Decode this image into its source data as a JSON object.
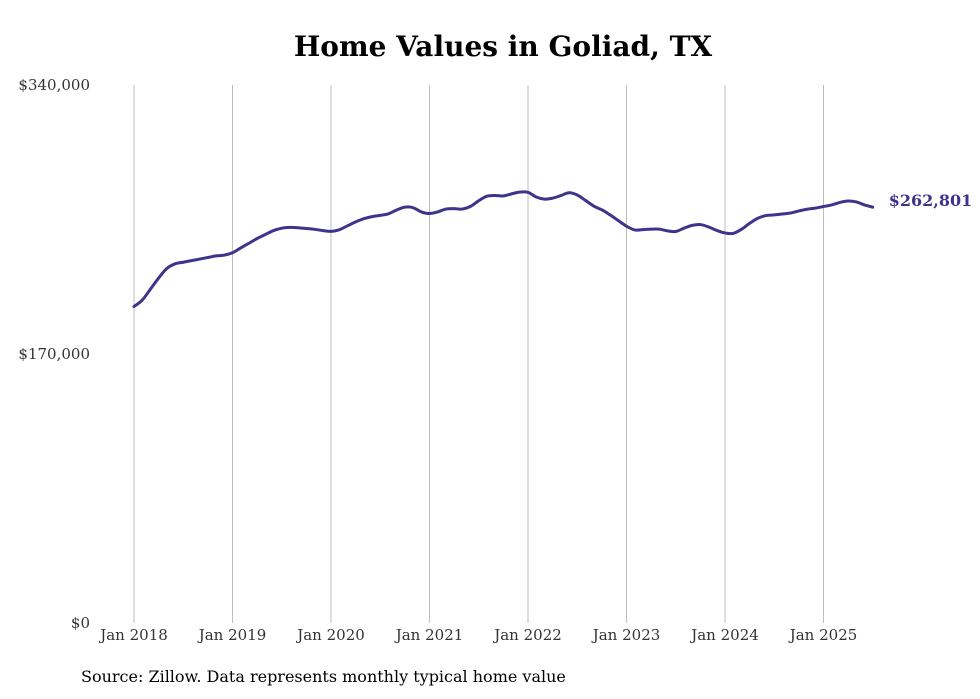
{
  "chart_data": {
    "type": "line",
    "title": "Home Values in Goliad, TX",
    "xlabel": "",
    "ylabel": "",
    "ylim": [
      0,
      340000
    ],
    "y_ticks": [
      "$340,000",
      "$170,000",
      "$0"
    ],
    "y_tick_values": [
      340000,
      170000,
      0
    ],
    "x_ticks": [
      "Jan 2018",
      "Jan 2019",
      "Jan 2020",
      "Jan 2021",
      "Jan 2022",
      "Jan 2023",
      "Jan 2024",
      "Jan 2025"
    ],
    "x_tick_values": [
      2018,
      2019,
      2020,
      2021,
      2022,
      2023,
      2024,
      2025
    ],
    "xlim": [
      2018,
      2025.5
    ],
    "grid": "vertical",
    "line_color": "#3d348b",
    "end_label": "$262,801",
    "series": [
      {
        "x": [
          2018.0,
          2018.083,
          2018.167,
          2018.25,
          2018.333,
          2018.417,
          2018.5,
          2018.583,
          2018.667,
          2018.75,
          2018.833,
          2018.917,
          2019.0,
          2019.083,
          2019.167,
          2019.25,
          2019.333,
          2019.417,
          2019.5,
          2019.583,
          2019.667,
          2019.75,
          2019.833,
          2019.917,
          2020.0,
          2020.083,
          2020.167,
          2020.25,
          2020.333,
          2020.417,
          2020.5,
          2020.583,
          2020.667,
          2020.75,
          2020.833,
          2020.917,
          2021.0,
          2021.083,
          2021.167,
          2021.25,
          2021.333,
          2021.417,
          2021.5,
          2021.583,
          2021.667,
          2021.75,
          2021.833,
          2021.917,
          2022.0,
          2022.083,
          2022.167,
          2022.25,
          2022.333,
          2022.417,
          2022.5,
          2022.583,
          2022.667,
          2022.75,
          2022.833,
          2022.917,
          2023.0,
          2023.083,
          2023.167,
          2023.25,
          2023.333,
          2023.417,
          2023.5,
          2023.583,
          2023.667,
          2023.75,
          2023.833,
          2023.917,
          2024.0,
          2024.083,
          2024.167,
          2024.25,
          2024.333,
          2024.417,
          2024.5,
          2024.583,
          2024.667,
          2024.75,
          2024.833,
          2024.917,
          2025.0,
          2025.083,
          2025.167,
          2025.25,
          2025.333,
          2025.417,
          2025.5
        ],
        "values": [
          200000,
          204000,
          211000,
          218000,
          224000,
          227000,
          228000,
          229000,
          230000,
          231000,
          232000,
          232500,
          234000,
          237000,
          240000,
          243000,
          245500,
          248000,
          249500,
          250000,
          249800,
          249300,
          248800,
          248000,
          247500,
          248500,
          251000,
          253500,
          255500,
          256800,
          257600,
          258600,
          261000,
          262800,
          262500,
          259800,
          258800,
          259800,
          261600,
          261900,
          261600,
          263300,
          266900,
          269700,
          270200,
          269900,
          271200,
          272300,
          272200,
          269200,
          267900,
          268500,
          270100,
          271900,
          270500,
          267100,
          263500,
          261100,
          257900,
          254300,
          250800,
          248400,
          248600,
          248900,
          248900,
          247800,
          247400,
          249500,
          251300,
          251800,
          250300,
          248100,
          246500,
          246200,
          248800,
          252600,
          255800,
          257500,
          257900,
          258500,
          259100,
          260400,
          261500,
          262200,
          263200,
          264200,
          265800,
          266700,
          266100,
          264200,
          262801
        ]
      }
    ]
  },
  "source_note": "Source: Zillow. Data represents monthly typical home value"
}
